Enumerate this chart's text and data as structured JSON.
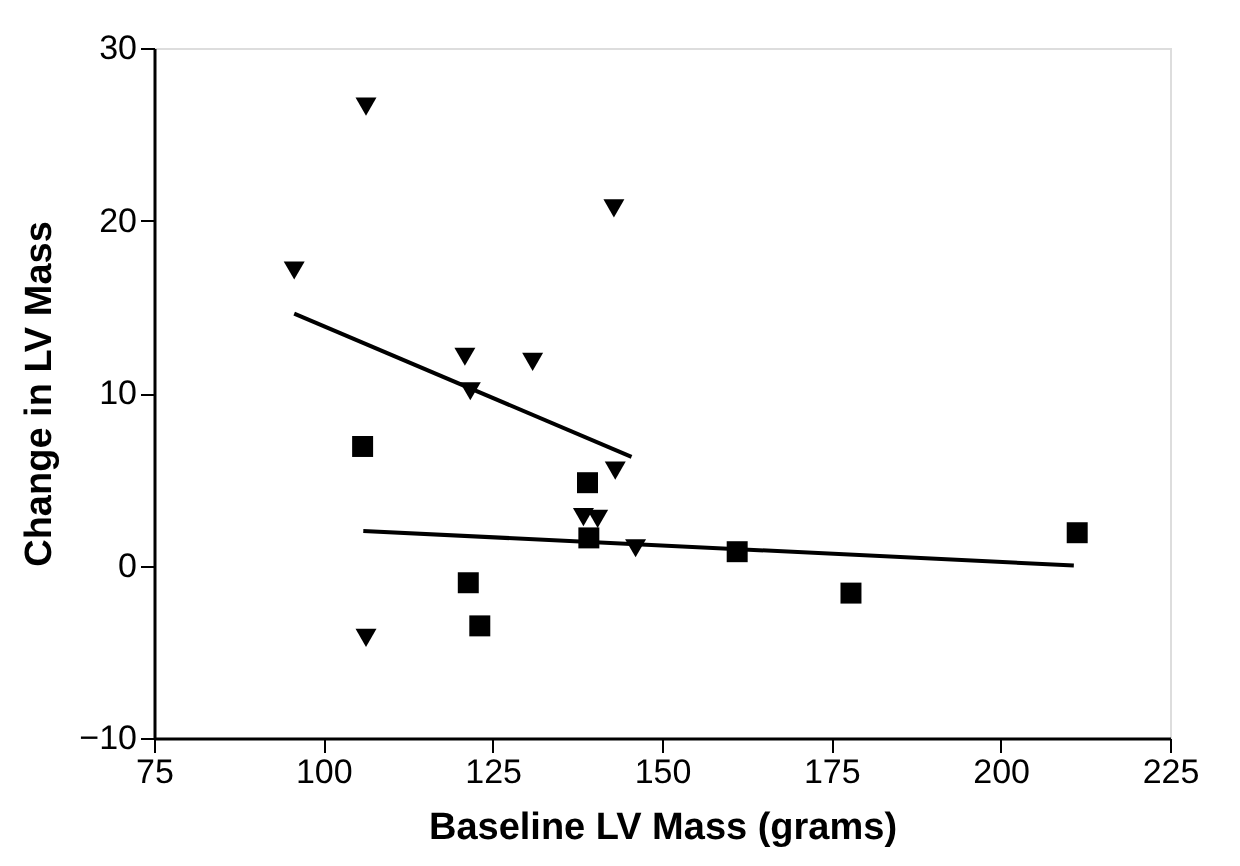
{
  "chart_data": {
    "type": "scatter",
    "xlabel": "Baseline LV Mass (grams)",
    "ylabel": "Change in LV Mass",
    "xlim": [
      75,
      225
    ],
    "xticks": [
      75,
      100,
      125,
      150,
      175,
      200,
      225
    ],
    "ylim": [
      -10,
      30
    ],
    "yticks": [
      -10,
      0,
      10,
      20,
      30
    ],
    "grid": false,
    "series": [
      {
        "marker": "triangle",
        "color": "#000000",
        "x": [
          106.3,
          95.7,
          142.9,
          120.9,
          130.9,
          121.7,
          143.1,
          138.4,
          140.5,
          146.1,
          106.3
        ],
        "values": [
          26.6,
          17.1,
          20.7,
          12.1,
          11.8,
          10.1,
          5.5,
          2.8,
          2.7,
          1.0,
          -4.2
        ]
      },
      {
        "marker": "square",
        "color": "#000000",
        "x": [
          105.8,
          139.0,
          139.2,
          121.4,
          123.1,
          161.1,
          177.9,
          211.3
        ],
        "values": [
          6.9,
          4.8,
          1.6,
          -1.0,
          -3.5,
          0.8,
          -1.6,
          1.9
        ]
      },
      {
        "type": "line",
        "color": "#000000",
        "line_style": "solid",
        "x": [
          95.7,
          145.5
        ],
        "values": [
          14.6,
          6.3
        ]
      },
      {
        "type": "line",
        "color": "#000000",
        "line_style": "solid",
        "x": [
          105.9,
          210.8
        ],
        "values": [
          2.0,
          0.0
        ]
      }
    ]
  }
}
